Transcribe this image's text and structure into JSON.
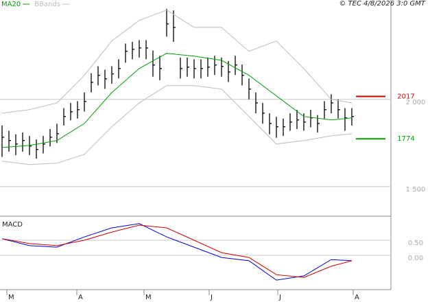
{
  "chart_data": [
    {
      "type": "ohlc",
      "credit": "© TEC 4/8/2026 3:0 GMT",
      "x": [
        0,
        1,
        2,
        3,
        4,
        5,
        6,
        7,
        8,
        9,
        10,
        11,
        12,
        13,
        14,
        15,
        16,
        17,
        18,
        19,
        20,
        21,
        22,
        23,
        24,
        25,
        26,
        27,
        28,
        29,
        30,
        31,
        32,
        33,
        34,
        35,
        36,
        37,
        38,
        39,
        40,
        41,
        42,
        43,
        44,
        45,
        46,
        47,
        48,
        49,
        50,
        51
      ],
      "high": [
        1850,
        1820,
        1800,
        1810,
        1790,
        1770,
        1790,
        1830,
        1860,
        1950,
        1980,
        1990,
        2040,
        2150,
        2190,
        2170,
        2190,
        2230,
        2320,
        2330,
        2340,
        2340,
        2280,
        2250,
        2520,
        2510,
        2240,
        2240,
        2230,
        2230,
        2240,
        2250,
        2240,
        2220,
        2250,
        2200,
        2120,
        2040,
        1980,
        1920,
        1900,
        1890,
        1920,
        1940,
        1920,
        1940,
        1910,
        1990,
        2030,
        2000,
        1950,
        1950
      ],
      "low": [
        1670,
        1700,
        1680,
        1700,
        1680,
        1660,
        1690,
        1730,
        1750,
        1850,
        1880,
        1890,
        1930,
        2040,
        2080,
        2060,
        2090,
        2120,
        2210,
        2230,
        2240,
        2230,
        2130,
        2110,
        2360,
        2330,
        2120,
        2130,
        2120,
        2120,
        2130,
        2140,
        2130,
        2100,
        2140,
        2080,
        2000,
        1920,
        1860,
        1800,
        1780,
        1790,
        1820,
        1830,
        1820,
        1840,
        1810,
        1890,
        1920,
        1890,
        1820,
        1850
      ],
      "close": [
        1783,
        1764,
        1744,
        1764,
        1732,
        1713,
        1744,
        1783,
        1803,
        1902,
        1929,
        1941,
        1988,
        2098,
        2138,
        2118,
        2146,
        2177,
        2276,
        2287,
        2295,
        2295,
        2197,
        2177,
        2433,
        2413,
        2177,
        2185,
        2177,
        2177,
        2185,
        2197,
        2189,
        2157,
        2197,
        2138,
        2059,
        1980,
        1921,
        1862,
        1843,
        1843,
        1870,
        1882,
        1870,
        1894,
        1862,
        1941,
        1980,
        1941,
        1894,
        1902
      ],
      "bar_color": "#000000",
      "overlays": [
        {
          "name": "MA20",
          "color": "#00a000",
          "x": [
            0,
            4,
            8,
            12,
            16,
            20,
            24,
            28,
            32,
            36,
            40,
            44,
            48,
            51
          ],
          "values": [
            1724,
            1736,
            1764,
            1862,
            2039,
            2177,
            2264,
            2248,
            2224,
            2138,
            2020,
            1902,
            1882,
            1894
          ]
        },
        {
          "name": "BBands",
          "color": "#bbbbbb",
          "x": [
            0,
            4,
            8,
            12,
            16,
            20,
            24,
            28,
            32,
            36,
            40,
            44,
            48,
            51
          ],
          "upper": [
            1921,
            1941,
            1980,
            2138,
            2335,
            2453,
            2512,
            2413,
            2413,
            2276,
            2335,
            2177,
            2000,
            1980
          ],
          "lower": [
            1646,
            1626,
            1634,
            1685,
            1843,
            1980,
            2079,
            2079,
            2059,
            1902,
            1744,
            1764,
            1791,
            1803
          ]
        }
      ],
      "levels": [
        {
          "value": 2017,
          "color": "#cc0000"
        },
        {
          "value": 1774,
          "color": "#00a000"
        }
      ],
      "xlim": [
        -0.3,
        56.7
      ],
      "ylim": [
        1330,
        2570
      ],
      "yticks": [
        {
          "value": 2000,
          "label": "2 000"
        },
        {
          "value": 1500,
          "label": "1 500"
        }
      ],
      "grid": true
    },
    {
      "type": "line",
      "title": "MACD",
      "x": [
        0,
        4,
        8,
        12,
        16,
        20,
        24,
        28,
        32,
        36,
        40,
        44,
        48,
        51
      ],
      "series": [
        {
          "color": "#0000cc",
          "values": [
            0.55,
            0.32,
            0.27,
            0.61,
            0.91,
            1.05,
            0.61,
            0.27,
            -0.07,
            -0.18,
            -0.82,
            -0.68,
            -0.14,
            -0.18
          ]
        },
        {
          "color": "#cc0000",
          "values": [
            0.55,
            0.39,
            0.32,
            0.5,
            0.77,
            1.0,
            0.91,
            0.5,
            0.09,
            -0.07,
            -0.64,
            -0.73,
            -0.36,
            -0.18
          ]
        }
      ],
      "xlim": [
        -0.3,
        56.7
      ],
      "ylim": [
        -1.09,
        1.25
      ],
      "yticks": [
        {
          "value": 0.5,
          "label": "0.50"
        },
        {
          "value": 0,
          "label": "0.00"
        }
      ],
      "xticks": [
        {
          "value": 0.7,
          "label": "M"
        },
        {
          "value": 10.9,
          "label": "A"
        },
        {
          "value": 20.7,
          "label": "M"
        },
        {
          "value": 30.2,
          "label": "J"
        },
        {
          "value": 40.2,
          "label": "J"
        },
        {
          "value": 51.2,
          "label": "A"
        }
      ],
      "grid": true
    }
  ]
}
